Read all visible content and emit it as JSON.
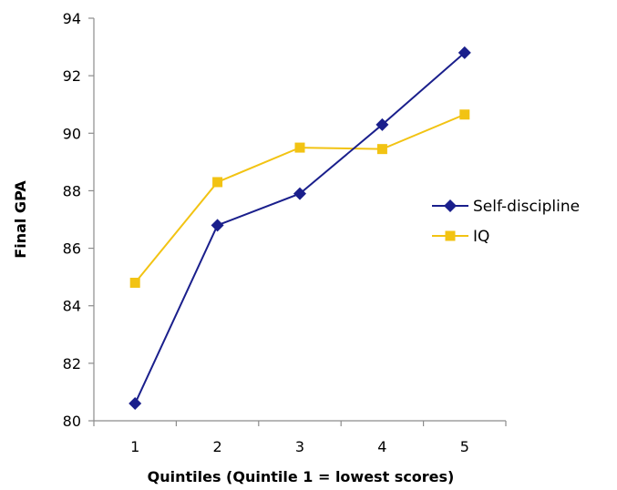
{
  "chart_data": {
    "type": "line",
    "title": "",
    "xlabel": "Quintiles (Quintile 1 = lowest scores)",
    "ylabel": "Final GPA",
    "categories": [
      "1",
      "2",
      "3",
      "4",
      "5"
    ],
    "ylim": [
      80,
      94
    ],
    "yticks": [
      "80",
      "82",
      "84",
      "86",
      "88",
      "90",
      "92",
      "94"
    ],
    "grid": false,
    "legend_position": "right",
    "series": [
      {
        "name": "Self-discipline",
        "values": [
          80.6,
          86.8,
          87.9,
          90.3,
          92.8
        ],
        "color": "#1a1f8c",
        "marker": "diamond"
      },
      {
        "name": "IQ",
        "values": [
          84.8,
          88.3,
          89.5,
          89.45,
          90.65
        ],
        "color": "#f2c313",
        "marker": "square"
      }
    ]
  }
}
